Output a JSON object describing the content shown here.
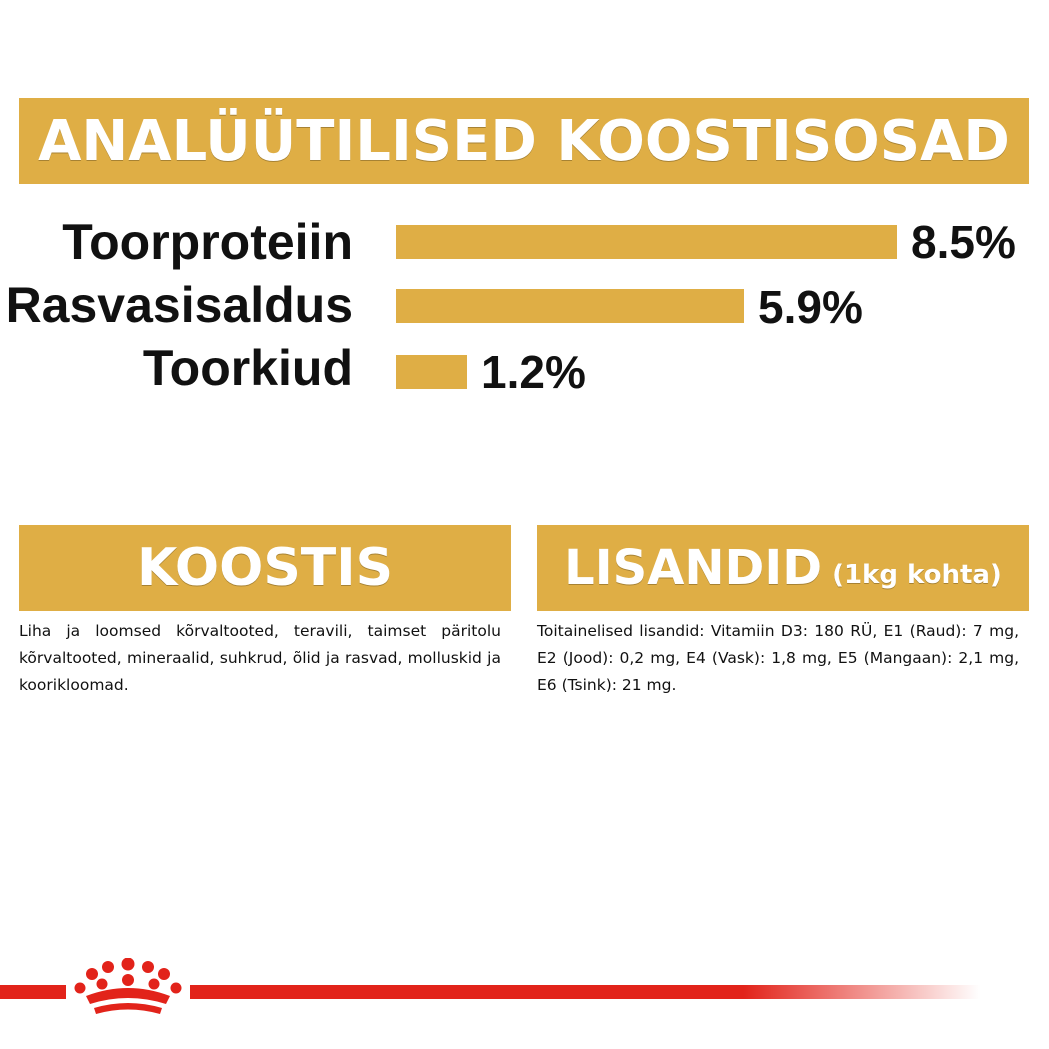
{
  "header": {
    "title": "ANALÜÜTILISED KOOSTISOSAD"
  },
  "analysis": {
    "rows": [
      {
        "label": "Toorproteiin",
        "value": "8.5%",
        "amount": 8.5
      },
      {
        "label": "Rasvasisaldus",
        "value": "5.9%",
        "amount": 5.9
      },
      {
        "label": "Toorkiud",
        "value": "1.2%",
        "amount": 1.2
      }
    ]
  },
  "composition": {
    "title": "KOOSTIS",
    "text": "Liha ja loomsed kõrvaltooted, teravili, taimset päritolu kõrvaltooted, mineraalid, suhkrud, õlid ja rasvad, molluskid ja koorikloomad."
  },
  "additives": {
    "title": "LISANDID",
    "subtitle": "(1kg kohta)",
    "text": "Toitainelised lisandid: Vitamiin D3: 180 RÜ, E1 (Raud): 7 mg, E2 (Jood): 0,2 mg, E4 (Vask): 1,8 mg, E5 (Mangaan): 2,1 mg, E6 (Tsink): 21 mg."
  },
  "colors": {
    "accent": "#dfae45",
    "brand_red": "#e2231a"
  },
  "footer": {
    "logo_icon": "crown-icon"
  }
}
